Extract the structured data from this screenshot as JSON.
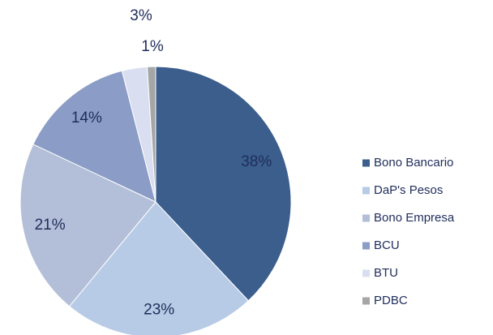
{
  "chart_data": {
    "type": "pie",
    "categories": [
      "Bono Bancario",
      "DaP's Pesos",
      "Bono Empresa",
      "BCU",
      "BTU",
      "PDBC"
    ],
    "values": [
      38,
      23,
      21,
      14,
      3,
      1
    ],
    "value_labels": [
      "38%",
      "23%",
      "21%",
      "14%",
      "3%",
      "1%"
    ],
    "colors": [
      "#3b5e8c",
      "#b7cbe6",
      "#b3bed8",
      "#8b9dc6",
      "#d9dff0",
      "#a6a6a6"
    ],
    "legend": "right"
  }
}
